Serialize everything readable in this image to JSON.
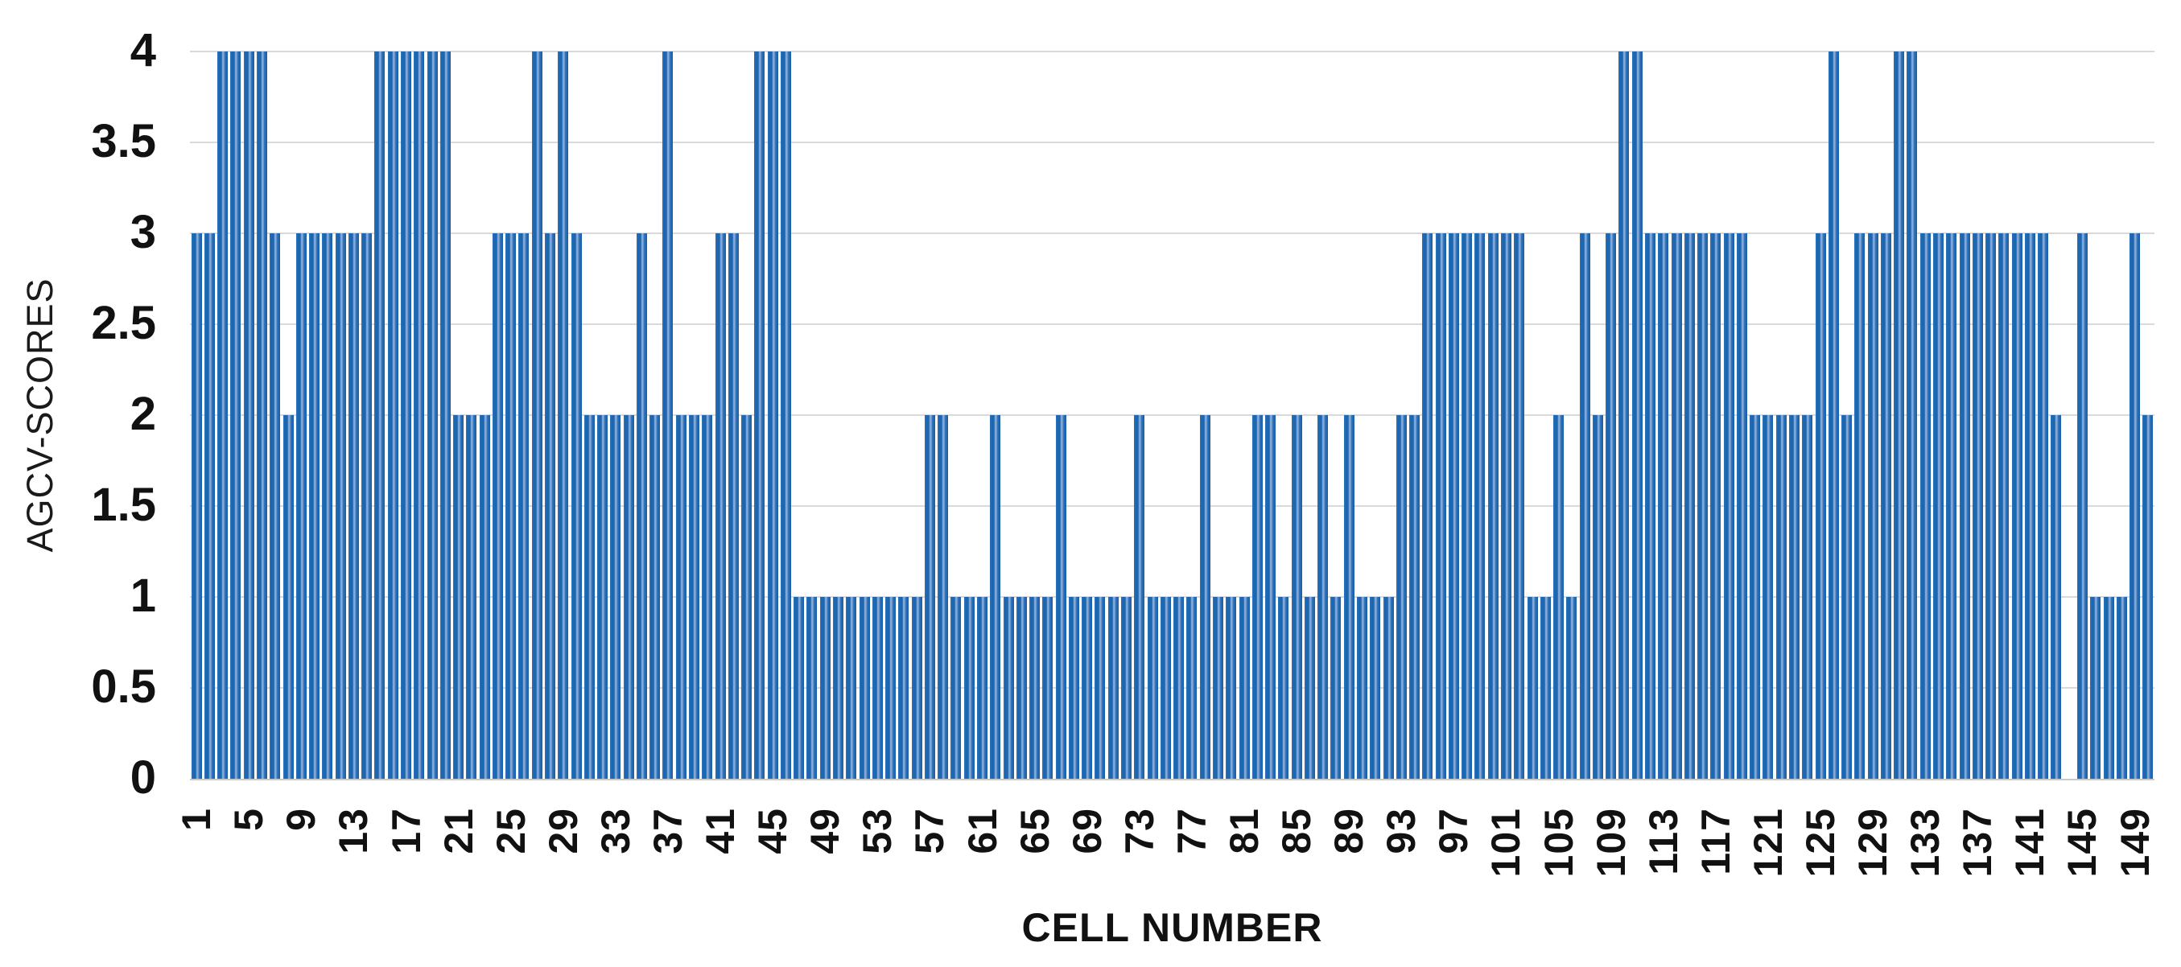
{
  "chart_data": {
    "type": "bar",
    "title": "",
    "xlabel": "CELL NUMBER",
    "ylabel": "AGCV-SCORES",
    "x_range": [
      1,
      150
    ],
    "ylim": [
      0,
      4
    ],
    "yticks": [
      0,
      0.5,
      1,
      1.5,
      2,
      2.5,
      3,
      3.5,
      4
    ],
    "ytick_labels": [
      "0",
      "0.5",
      "1",
      "1.5",
      "2",
      "2.5",
      "3",
      "3.5",
      "4"
    ],
    "xtick_start": 1,
    "xtick_step": 4,
    "xtick_labels": [
      "1",
      "5",
      "9",
      "13",
      "17",
      "21",
      "25",
      "29",
      "33",
      "37",
      "41",
      "45",
      "49",
      "53",
      "57",
      "61",
      "65",
      "69",
      "73",
      "77",
      "81",
      "85",
      "89",
      "93",
      "97",
      "101",
      "105",
      "109",
      "113",
      "117",
      "121",
      "125",
      "129",
      "133",
      "137",
      "141",
      "145",
      "149"
    ],
    "grid": true,
    "legend_position": "none",
    "values": [
      3,
      3,
      4,
      4,
      4,
      4,
      3,
      2,
      3,
      3,
      3,
      3,
      3,
      3,
      4,
      4,
      4,
      4,
      4,
      4,
      2,
      2,
      2,
      3,
      3,
      3,
      4,
      3,
      4,
      3,
      2,
      2,
      2,
      2,
      3,
      2,
      4,
      2,
      2,
      2,
      3,
      3,
      2,
      4,
      4,
      4,
      1,
      1,
      1,
      1,
      1,
      1,
      1,
      1,
      1,
      1,
      2,
      2,
      1,
      1,
      1,
      2,
      1,
      1,
      1,
      1,
      2,
      1,
      1,
      1,
      1,
      1,
      2,
      1,
      1,
      1,
      1,
      2,
      1,
      1,
      1,
      2,
      2,
      1,
      2,
      1,
      2,
      1,
      2,
      1,
      1,
      1,
      2,
      2,
      3,
      3,
      3,
      3,
      3,
      3,
      3,
      3,
      1,
      1,
      2,
      1,
      3,
      2,
      3,
      4,
      4,
      3,
      3,
      3,
      3,
      3,
      3,
      3,
      3,
      2,
      2,
      2,
      2,
      2,
      3,
      4,
      2,
      3,
      3,
      3,
      4,
      4,
      3,
      3,
      3,
      3,
      3,
      3,
      3,
      3,
      3,
      3,
      2,
      0,
      3,
      1,
      1,
      1,
      3,
      2
    ],
    "colors": {
      "bar_main": "#1d66b0",
      "bar_light": "#86abd9",
      "bar_dark": "#175ca6",
      "gridline": "#d9d9d9",
      "axis_line": "#c9c9c9",
      "text": "#111111",
      "background": "#ffffff"
    }
  }
}
